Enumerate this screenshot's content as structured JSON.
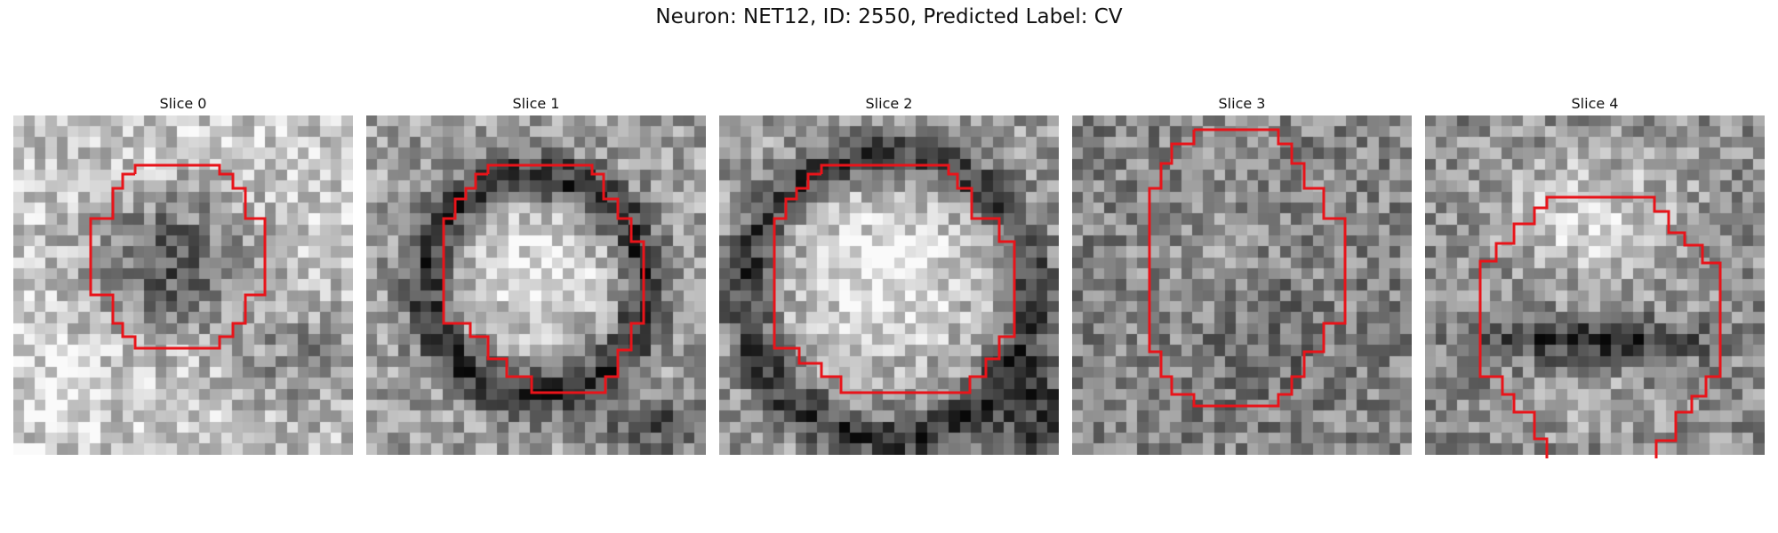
{
  "title": "Neuron: NET12, ID: 2550, Predicted Label: CV",
  "contour_color": "#e8141a",
  "panels": [
    {
      "label": "Slice 0",
      "appearance": "dark central blob, bright surround, bright blob lower-left"
    },
    {
      "label": "Slice 1",
      "appearance": "bright soma with dark ring, dark band lower-left"
    },
    {
      "label": "Slice 2",
      "appearance": "large bright soma, dark band below and lower-right"
    },
    {
      "label": "Slice 3",
      "appearance": "noisy mid-gray, tall region"
    },
    {
      "label": "Slice 4",
      "appearance": "bright top center, dark band lower-middle"
    }
  ]
}
